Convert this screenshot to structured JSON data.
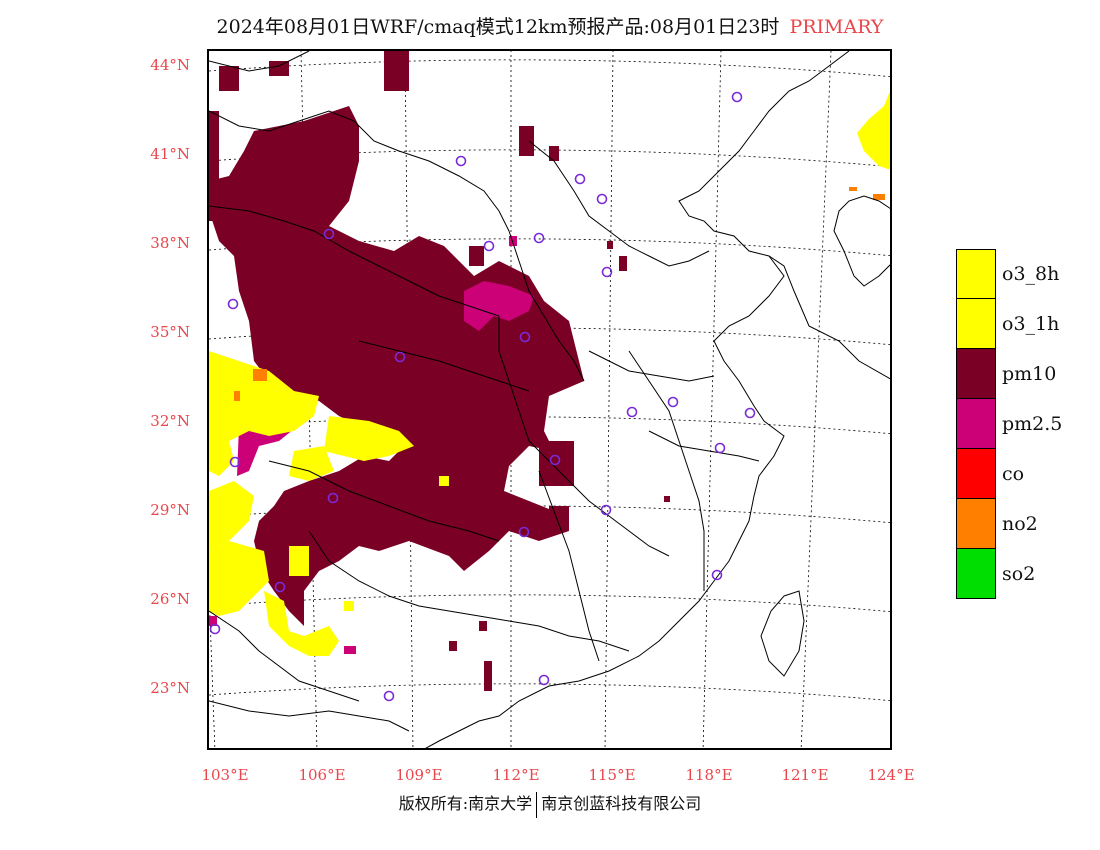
{
  "header": {
    "title": "2024年08月01日WRF/cmaq模式12km预报产品:08月01日23时",
    "tag": "PRIMARY"
  },
  "map": {
    "lat_labels": [
      "44°N",
      "41°N",
      "38°N",
      "35°N",
      "32°N",
      "29°N",
      "26°N",
      "23°N"
    ],
    "lon_labels": [
      "103°E",
      "106°E",
      "109°E",
      "112°E",
      "115°E",
      "118°E",
      "121°E",
      "124°E"
    ],
    "colors": {
      "pm10": "#7a0026",
      "o3": "#ffff00",
      "pm25": "#cc0077",
      "no2": "#ff7f00",
      "station": "#7a2bd8"
    }
  },
  "legend": {
    "items": [
      {
        "label": "o3_8h",
        "color": "#ffff00"
      },
      {
        "label": "o3_1h",
        "color": "#ffff00"
      },
      {
        "label": "pm10",
        "color": "#7a0026"
      },
      {
        "label": "pm2.5",
        "color": "#cc0077"
      },
      {
        "label": "co",
        "color": "#ff0000"
      },
      {
        "label": "no2",
        "color": "#ff7f00"
      },
      {
        "label": "so2",
        "color": "#00dd00"
      }
    ]
  },
  "footer": {
    "left": "版权所有:南京大学",
    "right": "南京创蓝科技有限公司"
  }
}
